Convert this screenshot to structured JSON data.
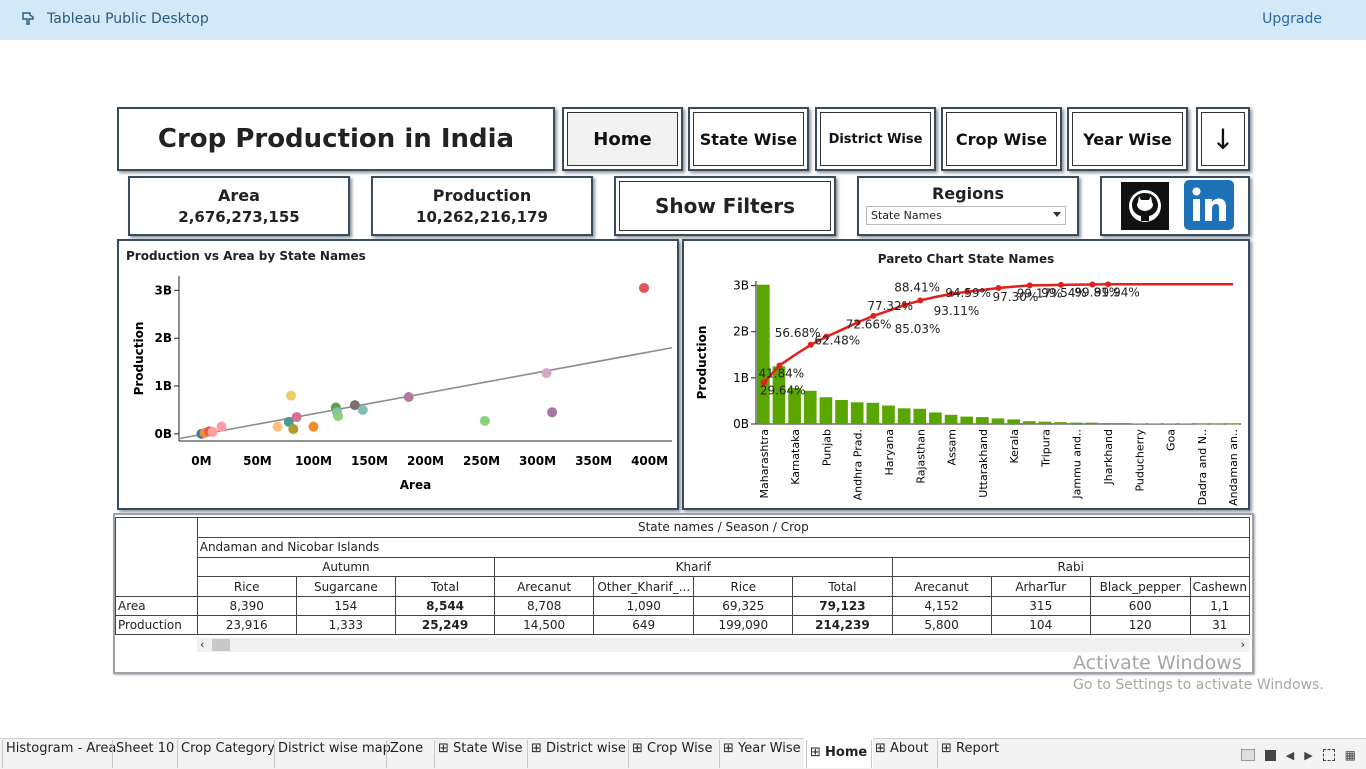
{
  "app": {
    "title": "Tableau Public Desktop",
    "upgrade_label": "Upgrade"
  },
  "dashboard": {
    "title": "Crop Production in India",
    "nav_buttons": [
      "Home",
      "State Wise",
      "District Wise",
      "Crop Wise",
      "Year Wise"
    ],
    "down_arrow": "↓",
    "kpis": {
      "area_label": "Area",
      "area_value": "2,676,273,155",
      "production_label": "Production",
      "production_value": "10,262,216,179"
    },
    "show_filters_label": "Show Filters",
    "regions": {
      "label": "Regions",
      "selected": "State Names"
    },
    "social": [
      "github-icon",
      "linkedin-icon"
    ]
  },
  "chart_data": [
    {
      "type": "scatter",
      "title": "Production vs Area by State Names",
      "xlabel": "Area",
      "ylabel": "Production",
      "x_ticks": [
        "0M",
        "50M",
        "100M",
        "150M",
        "200M",
        "250M",
        "300M",
        "350M",
        "400M"
      ],
      "y_ticks": [
        "0B",
        "1B",
        "2B",
        "3B"
      ],
      "xlim": [
        -20,
        420
      ],
      "ylim": [
        -0.15,
        3.3
      ],
      "trend_line": {
        "x": [
          -20,
          420
        ],
        "y": [
          -0.1,
          1.8
        ]
      },
      "points": [
        {
          "x": 0,
          "y": 0.0,
          "color": "#4e79a7"
        },
        {
          "x": 3,
          "y": 0.02,
          "color": "#f28e2b"
        },
        {
          "x": 7,
          "y": 0.05,
          "color": "#e15759"
        },
        {
          "x": 10,
          "y": 0.04,
          "color": "#ff9d9a"
        },
        {
          "x": 18,
          "y": 0.15,
          "color": "#ff9da7"
        },
        {
          "x": 68,
          "y": 0.15,
          "color": "#ffbe7d"
        },
        {
          "x": 78,
          "y": 0.25,
          "color": "#499894"
        },
        {
          "x": 80,
          "y": 0.8,
          "color": "#f1ce63"
        },
        {
          "x": 82,
          "y": 0.1,
          "color": "#b6992d"
        },
        {
          "x": 85,
          "y": 0.35,
          "color": "#d37295"
        },
        {
          "x": 100,
          "y": 0.15,
          "color": "#f28e2b"
        },
        {
          "x": 120,
          "y": 0.55,
          "color": "#59a14f"
        },
        {
          "x": 121,
          "y": 0.45,
          "color": "#86bcb6"
        },
        {
          "x": 122,
          "y": 0.37,
          "color": "#8cd17d"
        },
        {
          "x": 137,
          "y": 0.6,
          "color": "#79706e"
        },
        {
          "x": 144,
          "y": 0.5,
          "color": "#86bcb6"
        },
        {
          "x": 185,
          "y": 0.77,
          "color": "#b07aa1"
        },
        {
          "x": 253,
          "y": 0.27,
          "color": "#8cd17d"
        },
        {
          "x": 308,
          "y": 1.27,
          "color": "#d4a6c8"
        },
        {
          "x": 313,
          "y": 0.45,
          "color": "#a5789f"
        },
        {
          "x": 395,
          "y": 3.05,
          "color": "#e15759"
        }
      ]
    },
    {
      "type": "bar",
      "title": "Pareto Chart State Names",
      "ylabel": "Production",
      "y_ticks": [
        "0B",
        "1B",
        "2B",
        "3B"
      ],
      "ylim": [
        0,
        3.1
      ],
      "bar_color": "#59a600",
      "line_color": "#e0201b",
      "categories": [
        "Maharashtra",
        "",
        "Karnataka",
        "",
        "Punjab",
        "",
        "Andhra Prad.",
        "",
        "Haryana",
        "",
        "Rajasthan",
        "",
        "Assam",
        "",
        "Uttarakhand",
        "",
        "Kerala",
        "",
        "Tripura",
        "",
        "Jammu and..",
        "",
        "Jharkhand",
        "",
        "Puducherry",
        "",
        "Goa",
        "",
        "Dadra and N..",
        "",
        "Andaman an.."
      ],
      "values": [
        3.02,
        1.25,
        0.78,
        0.72,
        0.58,
        0.52,
        0.47,
        0.46,
        0.4,
        0.34,
        0.33,
        0.25,
        0.2,
        0.16,
        0.15,
        0.12,
        0.1,
        0.06,
        0.05,
        0.04,
        0.03,
        0.03,
        0.02,
        0.02,
        0.01,
        0.01,
        0.01,
        0.01,
        0.005,
        0.005,
        0.003
      ],
      "cumulative_percent": [
        29.64,
        41.84,
        49.5,
        56.68,
        62.48,
        67.5,
        72.66,
        77.32,
        81.1,
        85.03,
        88.41,
        90.9,
        93.11,
        94.59,
        95.9,
        97.3,
        98.3,
        99.17,
        99.3,
        99.54,
        99.7,
        99.81,
        99.94,
        99.97,
        99.98,
        99.99,
        99.99,
        100,
        100,
        100,
        100
      ],
      "percent_labels": [
        "29.64%",
        "41.84%",
        "56.68%",
        "62.48%",
        "72.66%",
        "77.32%",
        "85.03%",
        "88.41%",
        "93.11%",
        "94.59%",
        "97.30%",
        "99.17%",
        "99.54%",
        "99.81%",
        "99.94%"
      ]
    }
  ],
  "crosstab": {
    "header": "State names  /  Season  /  Crop",
    "state": "Andaman and Nicobar Islands",
    "seasons": [
      {
        "name": "Autumn",
        "span": 3
      },
      {
        "name": "Kharif",
        "span": 4
      },
      {
        "name": "Rabi",
        "span": 4
      }
    ],
    "crops": [
      "Rice",
      "Sugarcane",
      "Total",
      "Arecanut",
      "Other_Kharif_...",
      "Rice",
      "Total",
      "Arecanut",
      "ArharTur",
      "Black_pepper",
      "Cashewn"
    ],
    "rows": [
      {
        "label": "Area",
        "values": [
          "8,390",
          "154",
          "8,544",
          "8,708",
          "1,090",
          "69,325",
          "79,123",
          "4,152",
          "315",
          "600",
          "1,1"
        ]
      },
      {
        "label": "Production",
        "values": [
          "23,916",
          "1,333",
          "25,249",
          "14,500",
          "649",
          "199,090",
          "214,239",
          "5,800",
          "104",
          "120",
          "31"
        ]
      }
    ]
  },
  "watermark": {
    "line1": "Activate Windows",
    "line2": "Go to Settings to activate Windows."
  },
  "tabs": [
    {
      "label": "Histogram - Area",
      "icon": false
    },
    {
      "label": "Sheet 10",
      "icon": false
    },
    {
      "label": "Crop Category",
      "icon": false
    },
    {
      "label": "District wise map",
      "icon": false
    },
    {
      "label": "Zone",
      "icon": false
    },
    {
      "label": "State Wise",
      "icon": true
    },
    {
      "label": "District wise",
      "icon": true
    },
    {
      "label": "Crop Wise",
      "icon": true
    },
    {
      "label": "Year Wise",
      "icon": true
    },
    {
      "label": "Home",
      "icon": true,
      "active": true
    },
    {
      "label": "About",
      "icon": true
    },
    {
      "label": "Report",
      "icon": true
    }
  ]
}
